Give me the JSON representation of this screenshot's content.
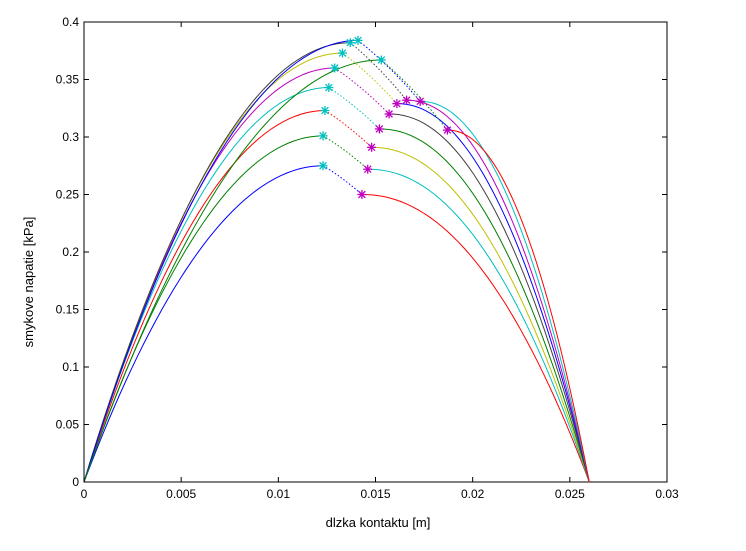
{
  "chart_data": {
    "type": "line",
    "title": "",
    "xlabel": "dlzka kontaktu [m]",
    "ylabel": "smykove napatie [kPa]",
    "xlim": [
      0,
      0.03
    ],
    "ylim": [
      0,
      0.4
    ],
    "xticks": [
      "0",
      "0.005",
      "0.01",
      "0.015",
      "0.02",
      "0.025",
      "0.03"
    ],
    "yticks": [
      "0",
      "0.05",
      "0.1",
      "0.15",
      "0.2",
      "0.25",
      "0.3",
      "0.35",
      "0.4"
    ],
    "grid": false,
    "legend": "none",
    "x_end": 0.026,
    "series": [
      {
        "color": "#0000ff",
        "peak_x": 0.0123,
        "peak_y": 0.275,
        "mark_x": 0.0143,
        "mark_y": 0.25,
        "end_color": "#ff0000"
      },
      {
        "color": "#008000",
        "peak_x": 0.0123,
        "peak_y": 0.301,
        "mark_x": 0.0146,
        "mark_y": 0.272,
        "end_color": "#00bfbf"
      },
      {
        "color": "#ff0000",
        "peak_x": 0.0124,
        "peak_y": 0.323,
        "mark_x": 0.0148,
        "mark_y": 0.291,
        "end_color": "#bfbf00"
      },
      {
        "color": "#00bfbf",
        "peak_x": 0.0126,
        "peak_y": 0.343,
        "mark_x": 0.0152,
        "mark_y": 0.307,
        "end_color": "#008000"
      },
      {
        "color": "#bf00bf",
        "peak_x": 0.0129,
        "peak_y": 0.36,
        "mark_x": 0.0157,
        "mark_y": 0.32,
        "end_color": "#404040"
      },
      {
        "color": "#bfbf00",
        "peak_x": 0.0133,
        "peak_y": 0.373,
        "mark_x": 0.0161,
        "mark_y": 0.329,
        "end_color": "#0000ff"
      },
      {
        "color": "#404040",
        "peak_x": 0.0137,
        "peak_y": 0.382,
        "mark_x": 0.0166,
        "mark_y": 0.332,
        "end_color": "#bf00bf"
      },
      {
        "color": "#0000ff",
        "peak_x": 0.0141,
        "peak_y": 0.384,
        "mark_x": 0.0173,
        "mark_y": 0.331,
        "end_color": "#00bfbf"
      },
      {
        "color": "#008000",
        "peak_x": 0.0153,
        "peak_y": 0.367,
        "mark_x": 0.0187,
        "mark_y": 0.306,
        "end_color": "#ff0000"
      }
    ],
    "marker_peak_color": "#00bfbf",
    "marker_mark_color": "#bf00bf"
  }
}
